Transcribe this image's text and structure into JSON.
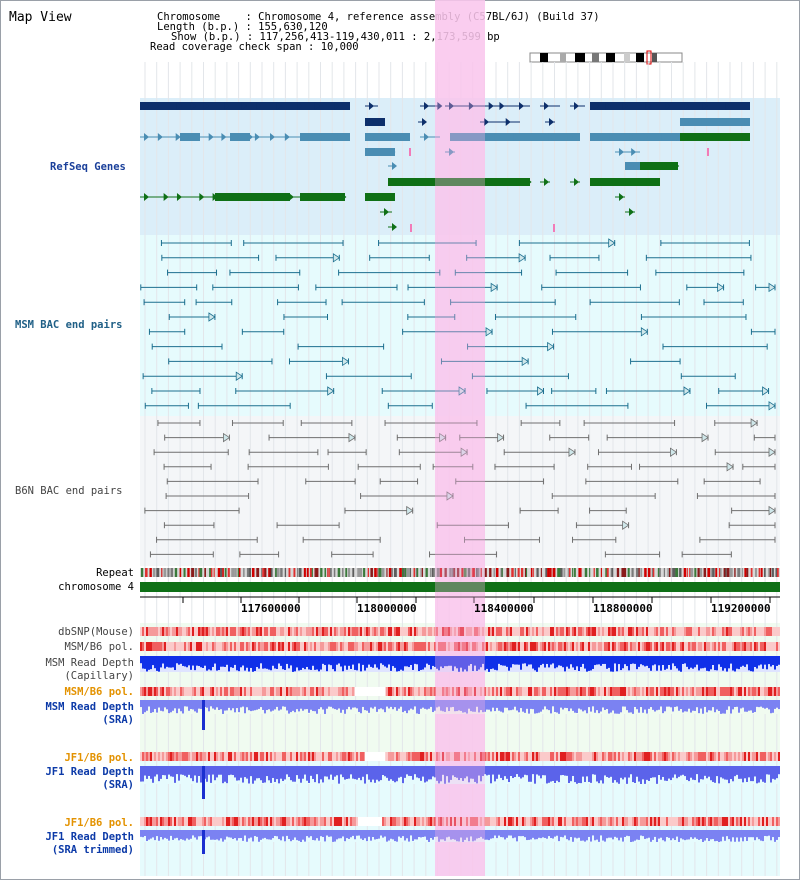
{
  "page": {
    "title": "Map View"
  },
  "info": {
    "chromosome_key": "Chromosome",
    "chromosome_value": "Chromosome 4, reference assembly (C57BL/6J) (Build 37)",
    "length_key": "Length (b.p.)",
    "length_value": "155,630,120",
    "show_key": "Show (b.p.)",
    "show_value": "117,256,413-119,430,011 : 2,173,599 bp",
    "coverage_key": "Read coverage check span",
    "coverage_value": "10,000"
  },
  "tracks": {
    "refseq": "RefSeq Genes",
    "msm_bac": "MSM BAC end pairs",
    "b6n_bac": "B6N BAC end pairs",
    "repeat": "Repeat",
    "chromosome": "chromosome 4",
    "dbsnp": "dbSNP(Mouse)",
    "msm_b6_pol_1": "MSM/B6 pol.",
    "msm_read_cap_1": "MSM Read Depth",
    "msm_read_cap_2": "(Capillary)",
    "msm_b6_pol_2": "MSM/B6 pol.",
    "msm_read_sra_1": "MSM Read Depth",
    "msm_read_sra_2": "(SRA)",
    "jf1_b6_pol_1": "JF1/B6 pol.",
    "jf1_read_sra_1": "JF1 Read Depth",
    "jf1_read_sra_2": "(SRA)",
    "jf1_b6_pol_2": "JF1/B6 pol.",
    "jf1_read_trim_1": "JF1 Read Depth",
    "jf1_read_trim_2": "(SRA trimmed)"
  },
  "axis": {
    "ticks": [
      "117600000",
      "118000000",
      "118400000",
      "118800000",
      "119200000"
    ]
  },
  "colors": {
    "refseq_bg": "#dbeef9",
    "msm_bac_bg": "#e6fbfd",
    "b6n_bac_bg": "#f4f6f8",
    "highlight": "#fbd3f1",
    "gene_navy": "#0d2f6b",
    "gene_steel": "#4a8db3",
    "gene_green": "#0f7016",
    "bac_teal": "#1c6f8f",
    "bac_gray": "#6f6f6f",
    "depth_blue": "#1030e8",
    "depth_light": "#7b82f2"
  }
}
